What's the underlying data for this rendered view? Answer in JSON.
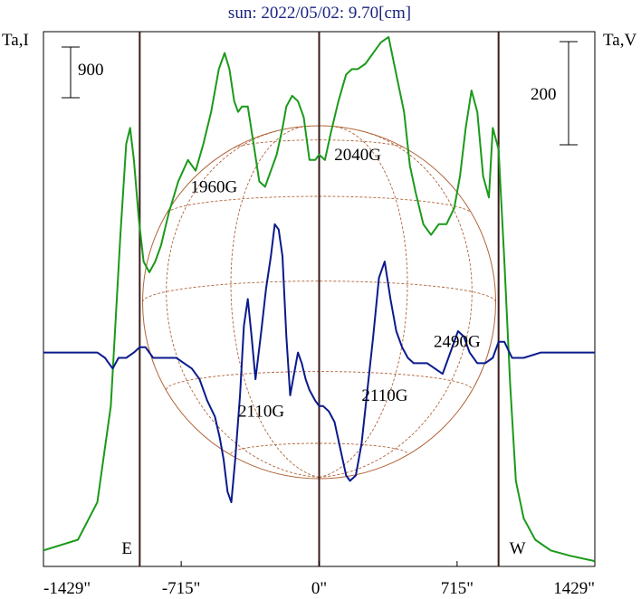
{
  "chart_data": {
    "type": "line",
    "title": "sun: 2022/05/02: 9.70[cm]",
    "left_axis_label": "Ta,I",
    "right_axis_label": "Ta,V",
    "left_scale_bar": "900",
    "right_scale_bar": "200",
    "xlim": [
      -1429,
      1429
    ],
    "x_ticks": [
      {
        "value": -1429,
        "label": "-1429\""
      },
      {
        "value": -715,
        "label": "-715\""
      },
      {
        "value": 0,
        "label": "0\""
      },
      {
        "value": 715,
        "label": "715\""
      },
      {
        "value": 1429,
        "label": "1429\""
      }
    ],
    "limb_markers": [
      {
        "value": -930,
        "label": "E"
      },
      {
        "value": 930,
        "label": "W"
      }
    ],
    "center_line": 0,
    "disk": {
      "center_x": 0,
      "radius": 915,
      "color": "#b0653a"
    },
    "annotations": [
      {
        "text": "2110G",
        "x": -300,
        "y_pct": 0.28
      },
      {
        "text": "2110G",
        "x": 340,
        "y_pct": 0.31
      },
      {
        "text": "2490G",
        "x": 715,
        "y_pct": 0.41
      },
      {
        "text": "1960G",
        "x": -545,
        "y_pct": 0.7
      },
      {
        "text": "2040G",
        "x": 200,
        "y_pct": 0.76
      }
    ],
    "series": [
      {
        "name": "I",
        "color": "#1a9a1a",
        "x": [
          -1429,
          -1250,
          -1150,
          -1080,
          -1030,
          -1000,
          -980,
          -960,
          -935,
          -910,
          -880,
          -850,
          -820,
          -780,
          -730,
          -680,
          -640,
          -600,
          -560,
          -520,
          -490,
          -465,
          -440,
          -420,
          -400,
          -370,
          -340,
          -310,
          -280,
          -250,
          -220,
          -190,
          -170,
          -140,
          -110,
          -80,
          -50,
          -20,
          0,
          30,
          60,
          100,
          140,
          170,
          200,
          240,
          280,
          320,
          360,
          400,
          440,
          470,
          500,
          540,
          580,
          620,
          660,
          700,
          730,
          760,
          790,
          820,
          850,
          880,
          900,
          930,
          960,
          990,
          1020,
          1060,
          1120,
          1200,
          1300,
          1429
        ],
        "y": [
          0.03,
          0.05,
          0.12,
          0.3,
          0.62,
          0.79,
          0.82,
          0.76,
          0.65,
          0.57,
          0.55,
          0.57,
          0.6,
          0.66,
          0.72,
          0.76,
          0.74,
          0.79,
          0.85,
          0.93,
          0.96,
          0.93,
          0.87,
          0.85,
          0.86,
          0.86,
          0.79,
          0.72,
          0.71,
          0.74,
          0.77,
          0.82,
          0.86,
          0.88,
          0.87,
          0.84,
          0.76,
          0.76,
          0.77,
          0.76,
          0.81,
          0.87,
          0.92,
          0.93,
          0.93,
          0.94,
          0.96,
          0.98,
          0.99,
          0.92,
          0.85,
          0.75,
          0.7,
          0.64,
          0.62,
          0.64,
          0.64,
          0.67,
          0.73,
          0.82,
          0.89,
          0.85,
          0.73,
          0.69,
          0.82,
          0.78,
          0.57,
          0.34,
          0.16,
          0.09,
          0.05,
          0.03,
          0.02,
          0.01
        ]
      },
      {
        "name": "V",
        "color": "#0a1a8c",
        "x": [
          -1429,
          -1300,
          -1200,
          -1150,
          -1110,
          -1090,
          -1070,
          -1040,
          -1000,
          -960,
          -930,
          -900,
          -860,
          -800,
          -740,
          -700,
          -660,
          -620,
          -580,
          -540,
          -515,
          -495,
          -475,
          -455,
          -435,
          -410,
          -390,
          -370,
          -350,
          -330,
          -300,
          -275,
          -250,
          -230,
          -210,
          -190,
          -170,
          -150,
          -130,
          -110,
          -90,
          -70,
          -50,
          -20,
          0,
          20,
          50,
          80,
          110,
          140,
          160,
          190,
          220,
          250,
          280,
          310,
          340,
          370,
          400,
          430,
          460,
          490,
          520,
          560,
          600,
          640,
          680,
          720,
          750,
          780,
          820,
          860,
          900,
          930,
          960,
          1000,
          1060,
          1150,
          1250,
          1350,
          1429
        ],
        "y": [
          0.4,
          0.4,
          0.4,
          0.4,
          0.39,
          0.38,
          0.37,
          0.39,
          0.39,
          0.4,
          0.41,
          0.41,
          0.39,
          0.39,
          0.39,
          0.38,
          0.37,
          0.35,
          0.31,
          0.28,
          0.24,
          0.2,
          0.14,
          0.12,
          0.2,
          0.32,
          0.45,
          0.5,
          0.43,
          0.35,
          0.44,
          0.52,
          0.58,
          0.64,
          0.63,
          0.58,
          0.43,
          0.32,
          0.36,
          0.4,
          0.38,
          0.35,
          0.33,
          0.31,
          0.3,
          0.3,
          0.29,
          0.27,
          0.22,
          0.17,
          0.16,
          0.17,
          0.23,
          0.33,
          0.43,
          0.54,
          0.57,
          0.5,
          0.44,
          0.41,
          0.39,
          0.38,
          0.38,
          0.38,
          0.37,
          0.36,
          0.4,
          0.44,
          0.43,
          0.4,
          0.38,
          0.38,
          0.39,
          0.42,
          0.42,
          0.39,
          0.39,
          0.4,
          0.4,
          0.4,
          0.4
        ]
      }
    ]
  }
}
